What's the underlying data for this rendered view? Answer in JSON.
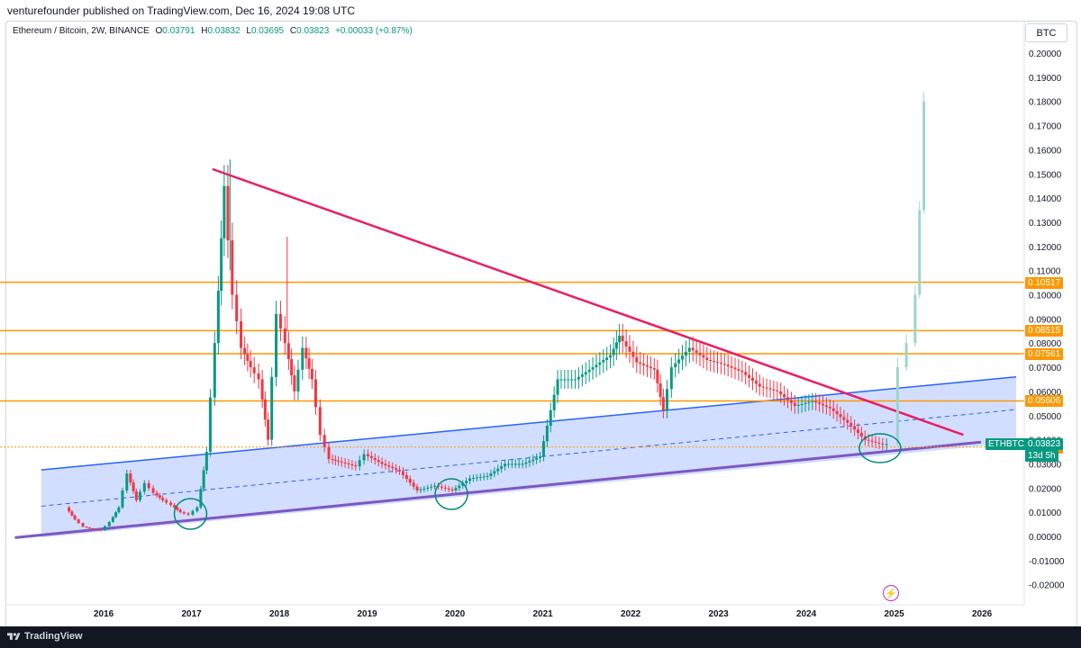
{
  "header": {
    "publisher": "venturefounder published on TradingView.com, Dec 16, 2024 19:08 UTC"
  },
  "legend": {
    "symbol": "Ethereum / Bitcoin, 2W, BINANCE",
    "o_label": "O",
    "o": "0.03791",
    "h_label": "H",
    "h": "0.03832",
    "l_label": "L",
    "l": "0.03695",
    "c_label": "C",
    "c": "0.03823",
    "change": "+0.00033 (+0.87%)"
  },
  "currency_button": "BTC",
  "footer": {
    "brand": "TradingView"
  },
  "colors": {
    "up": "#089981",
    "down": "#f23645",
    "channel": "#2962ff",
    "channel_fill": "#c7d6ff",
    "triangle": "#e91e63",
    "support": "#7e57c2",
    "hline": "#ff9800",
    "projection": "#9fd4cc",
    "circle": "#00897b"
  },
  "chart_data": {
    "type": "candlestick",
    "ylim": [
      -0.025,
      0.215
    ],
    "y_ticks": [
      "0.20000",
      "0.19000",
      "0.18000",
      "0.17000",
      "0.16000",
      "0.15000",
      "0.14000",
      "0.13000",
      "0.12000",
      "0.11000",
      "0.10000",
      "0.09000",
      "0.08000",
      "0.07000",
      "0.06000",
      "0.05000",
      "0.04000",
      "0.03000",
      "0.02000",
      "0.01000",
      "0.00000",
      "-0.01000",
      "-0.02000"
    ],
    "x_ticks": [
      "2016",
      "2017",
      "2018",
      "2019",
      "2020",
      "2021",
      "2022",
      "2023",
      "2024",
      "2025",
      "2026"
    ],
    "horizontal_levels": [
      {
        "label": "0.10517",
        "value": 0.10517
      },
      {
        "label": "0.08515",
        "value": 0.08515
      },
      {
        "label": "0.07561",
        "value": 0.07561
      },
      {
        "label": "0.05606",
        "value": 0.05606
      },
      {
        "label": "0.03696",
        "value": 0.03696
      }
    ],
    "last_price": {
      "symbol": "ETHBTC",
      "price": "0.03823",
      "countdown": "13d 5h"
    },
    "series_closes": [
      [
        "2015.6",
        0.012
      ],
      [
        "2015.7",
        0.007
      ],
      [
        "2015.8",
        0.004
      ],
      [
        "2015.9",
        0.003
      ],
      [
        "2016.0",
        0.0025
      ],
      [
        "2016.1",
        0.006
      ],
      [
        "2016.2",
        0.012
      ],
      [
        "2016.3",
        0.026
      ],
      [
        "2016.4",
        0.015
      ],
      [
        "2016.5",
        0.022
      ],
      [
        "2016.6",
        0.018
      ],
      [
        "2016.7",
        0.015
      ],
      [
        "2016.8",
        0.013
      ],
      [
        "2016.9",
        0.01
      ],
      [
        "2017.0",
        0.009
      ],
      [
        "2017.1",
        0.012
      ],
      [
        "2017.2",
        0.035
      ],
      [
        "2017.3",
        0.08
      ],
      [
        "2017.4",
        0.145
      ],
      [
        "2017.5",
        0.1
      ],
      [
        "2017.6",
        0.078
      ],
      [
        "2017.7",
        0.07
      ],
      [
        "2017.8",
        0.065
      ],
      [
        "2017.9",
        0.04
      ],
      [
        "2018.0",
        0.092
      ],
      [
        "2018.1",
        0.08
      ],
      [
        "2018.2",
        0.06
      ],
      [
        "2018.3",
        0.078
      ],
      [
        "2018.4",
        0.065
      ],
      [
        "2018.5",
        0.042
      ],
      [
        "2018.6",
        0.032
      ],
      [
        "2018.7",
        0.031
      ],
      [
        "2018.9",
        0.029
      ],
      [
        "2019.0",
        0.034
      ],
      [
        "2019.2",
        0.03
      ],
      [
        "2019.4",
        0.027
      ],
      [
        "2019.6",
        0.019
      ],
      [
        "2019.8",
        0.021
      ],
      [
        "2020.0",
        0.019
      ],
      [
        "2020.2",
        0.024
      ],
      [
        "2020.4",
        0.025
      ],
      [
        "2020.6",
        0.03
      ],
      [
        "2020.8",
        0.03
      ],
      [
        "2021.0",
        0.033
      ],
      [
        "2021.2",
        0.065
      ],
      [
        "2021.4",
        0.065
      ],
      [
        "2021.6",
        0.07
      ],
      [
        "2021.8",
        0.075
      ],
      [
        "2021.9",
        0.083
      ],
      [
        "2022.1",
        0.072
      ],
      [
        "2022.3",
        0.069
      ],
      [
        "2022.4",
        0.052
      ],
      [
        "2022.5",
        0.07
      ],
      [
        "2022.7",
        0.078
      ],
      [
        "2022.9",
        0.073
      ],
      [
        "2023.1",
        0.071
      ],
      [
        "2023.3",
        0.068
      ],
      [
        "2023.5",
        0.062
      ],
      [
        "2023.7",
        0.06
      ],
      [
        "2023.9",
        0.054
      ],
      [
        "2024.1",
        0.056
      ],
      [
        "2024.3",
        0.053
      ],
      [
        "2024.5",
        0.047
      ],
      [
        "2024.7",
        0.04
      ],
      [
        "2024.9",
        0.038
      ],
      [
        "2024.95",
        0.0382
      ]
    ],
    "projection_closes": [
      [
        "2025.05",
        0.07
      ],
      [
        "2025.15",
        0.08
      ],
      [
        "2025.25",
        0.1
      ],
      [
        "2025.3",
        0.135
      ],
      [
        "2025.35",
        0.18
      ]
    ]
  }
}
